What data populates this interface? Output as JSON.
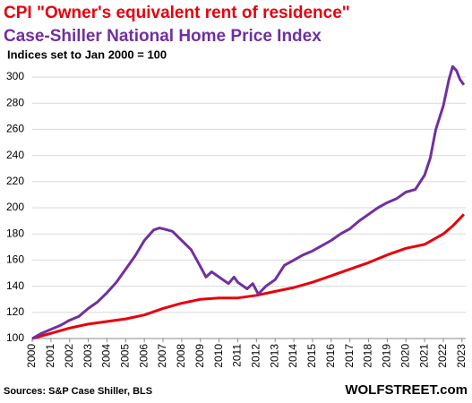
{
  "chart_data": {
    "type": "line",
    "subtitle": "Indices set to Jan 2000 = 100",
    "source": "Sources: S&P Case Shiller, BLS",
    "brand": "WOLFSTREET.com",
    "xlim": [
      2000,
      2023.2
    ],
    "xticks": [
      2000,
      2001,
      2002,
      2003,
      2004,
      2005,
      2006,
      2007,
      2008,
      2009,
      2010,
      2011,
      2012,
      2013,
      2014,
      2015,
      2016,
      2017,
      2018,
      2019,
      2020,
      2021,
      2022,
      2023
    ],
    "ylim": [
      100,
      310
    ],
    "yticks": [
      100,
      120,
      140,
      160,
      180,
      200,
      220,
      240,
      260,
      280,
      300
    ],
    "grid": true,
    "series": [
      {
        "name": "CPI \"Owner's equivalent rent of residence\"",
        "color": "#e8000b",
        "x": [
          2000,
          2001,
          2002,
          2003,
          2004,
          2005,
          2006,
          2007,
          2008,
          2009,
          2010,
          2011,
          2012,
          2013,
          2014,
          2015,
          2016,
          2017,
          2018,
          2019,
          2020,
          2021,
          2022,
          2022.5,
          2023.1
        ],
        "values": [
          100,
          104,
          108,
          111,
          113,
          115,
          118,
          123,
          127,
          130,
          131,
          131,
          133,
          136,
          139,
          143,
          148,
          153,
          158,
          164,
          169,
          172,
          180,
          186,
          195
        ]
      },
      {
        "name": "Case-Shiller National Home Price Index",
        "color": "#7030a0",
        "x": [
          2000,
          2000.5,
          2001,
          2001.5,
          2002,
          2002.5,
          2003,
          2003.5,
          2004,
          2004.5,
          2005,
          2005.5,
          2006,
          2006.5,
          2006.8,
          2007,
          2007.5,
          2008,
          2008.5,
          2009,
          2009.3,
          2009.6,
          2010,
          2010.5,
          2010.8,
          2011,
          2011.5,
          2011.8,
          2012.1,
          2012.5,
          2013,
          2013.5,
          2014,
          2014.5,
          2015,
          2015.5,
          2016,
          2016.5,
          2017,
          2017.5,
          2018,
          2018.5,
          2019,
          2019.5,
          2020,
          2020.5,
          2021,
          2021.3,
          2021.6,
          2022,
          2022.3,
          2022.5,
          2022.7,
          2022.9,
          2023.1
        ],
        "values": [
          100,
          104,
          107,
          110,
          114,
          117,
          123,
          128,
          135,
          143,
          153,
          163,
          175,
          183,
          184.5,
          184,
          182,
          175,
          168,
          155,
          147,
          151,
          147,
          142,
          147,
          143,
          138,
          142,
          134,
          140,
          145,
          156,
          160,
          164,
          167,
          171,
          175,
          180,
          184,
          190,
          195,
          200,
          204,
          207,
          212,
          214,
          225,
          238,
          260,
          278,
          298,
          308,
          305,
          298,
          294
        ]
      }
    ]
  }
}
